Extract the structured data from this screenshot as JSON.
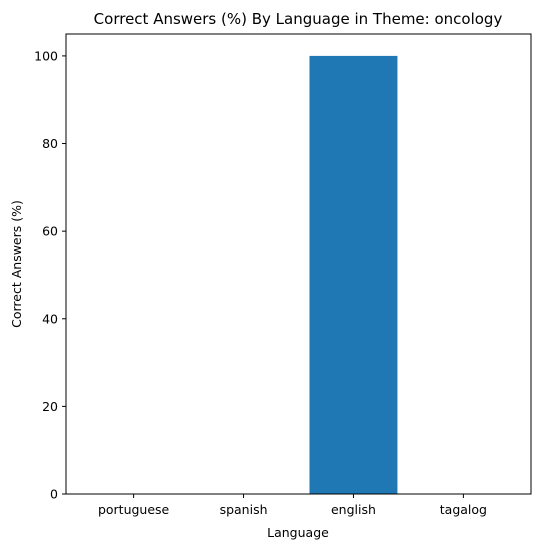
{
  "chart_data": {
    "type": "bar",
    "title": "Correct Answers (%) By Language in Theme: oncology",
    "xlabel": "Language",
    "ylabel": "Correct Answers (%)",
    "categories": [
      "portuguese",
      "spanish",
      "english",
      "tagalog"
    ],
    "values": [
      0,
      0,
      100,
      0
    ],
    "ylim": [
      0,
      105
    ],
    "yticks": [
      0,
      20,
      40,
      60,
      80,
      100
    ],
    "bar_color": "#1f77b4",
    "grid": false,
    "legend": "none"
  }
}
